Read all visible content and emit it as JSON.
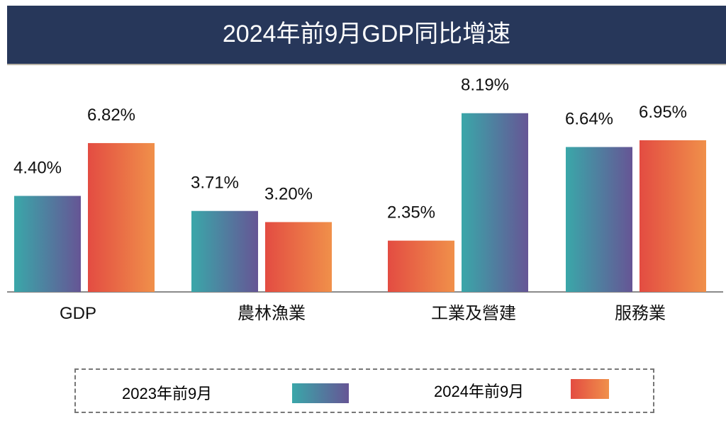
{
  "chart_data": {
    "type": "bar",
    "title": "2024年前9月GDP同比增速",
    "categories": [
      "GDP",
      "農林漁業",
      "工業及營建",
      "服務業"
    ],
    "series": [
      {
        "name": "2023年前9月",
        "values": [
          4.4,
          3.71,
          2.35,
          6.64
        ],
        "labels": [
          "4.40%",
          "3.71%",
          "2.35%",
          "6.64%"
        ]
      },
      {
        "name": "2024年前9月",
        "values": [
          6.82,
          3.2,
          8.19,
          6.95
        ],
        "labels": [
          "6.82%",
          "3.20%",
          "8.19%",
          "6.95%"
        ]
      }
    ],
    "bar_colors": [
      [
        "blue-purple",
        "red-orange"
      ],
      [
        "blue-purple",
        "red-orange"
      ],
      [
        "red-orange",
        "blue-purple"
      ],
      [
        "blue-purple",
        "red-orange"
      ]
    ],
    "colors": {
      "blue-purple": [
        "#3aa7a9",
        "#665595"
      ],
      "red-orange": [
        "#e34c42",
        "#f0904a"
      ],
      "title_bg": "#27375a"
    },
    "ylim": [
      0,
      9
    ],
    "grid": false,
    "legend_position": "bottom"
  }
}
